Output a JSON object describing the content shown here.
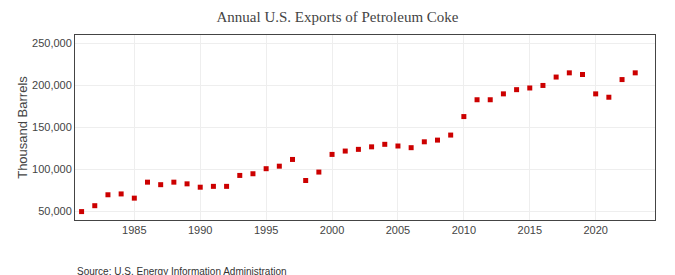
{
  "chart_data": {
    "type": "scatter",
    "title": "Annual U.S. Exports of Petroleum Coke",
    "ylabel": "Thousand Barrels",
    "annotations": [
      "Source: U.S. Energy Information Administration"
    ],
    "color": "#cc0000",
    "marker": "square",
    "grid": true,
    "x": [
      1981,
      1982,
      1983,
      1984,
      1985,
      1986,
      1987,
      1988,
      1989,
      1990,
      1991,
      1992,
      1993,
      1994,
      1995,
      1996,
      1997,
      1998,
      1999,
      2000,
      2001,
      2002,
      2003,
      2004,
      2005,
      2006,
      2007,
      2008,
      2009,
      2010,
      2011,
      2012,
      2013,
      2014,
      2015,
      2016,
      2017,
      2018,
      2019,
      2020,
      2021,
      2022,
      2023
    ],
    "values": [
      50000,
      57000,
      70000,
      71000,
      66000,
      85000,
      82000,
      85000,
      83000,
      79000,
      80000,
      80000,
      93000,
      95000,
      101000,
      104000,
      112000,
      87000,
      97000,
      118000,
      122000,
      124000,
      127000,
      130000,
      128000,
      126000,
      133000,
      135000,
      141000,
      163000,
      183000,
      183000,
      190000,
      195000,
      197000,
      200000,
      210000,
      215000,
      213000,
      190000,
      186000,
      207000,
      215000
    ],
    "xlim": [
      1980.5,
      2024.5
    ],
    "xticks": [
      1985,
      1990,
      1995,
      2000,
      2005,
      2010,
      2015,
      2020
    ],
    "ylim": [
      40000,
      260000
    ],
    "yticks": [
      {
        "value": 50000,
        "label": "50,000"
      },
      {
        "value": 100000,
        "label": "100,000"
      },
      {
        "value": 150000,
        "label": "150,000"
      },
      {
        "value": 200000,
        "label": "200,000"
      },
      {
        "value": 250000,
        "label": "250,000"
      }
    ]
  }
}
